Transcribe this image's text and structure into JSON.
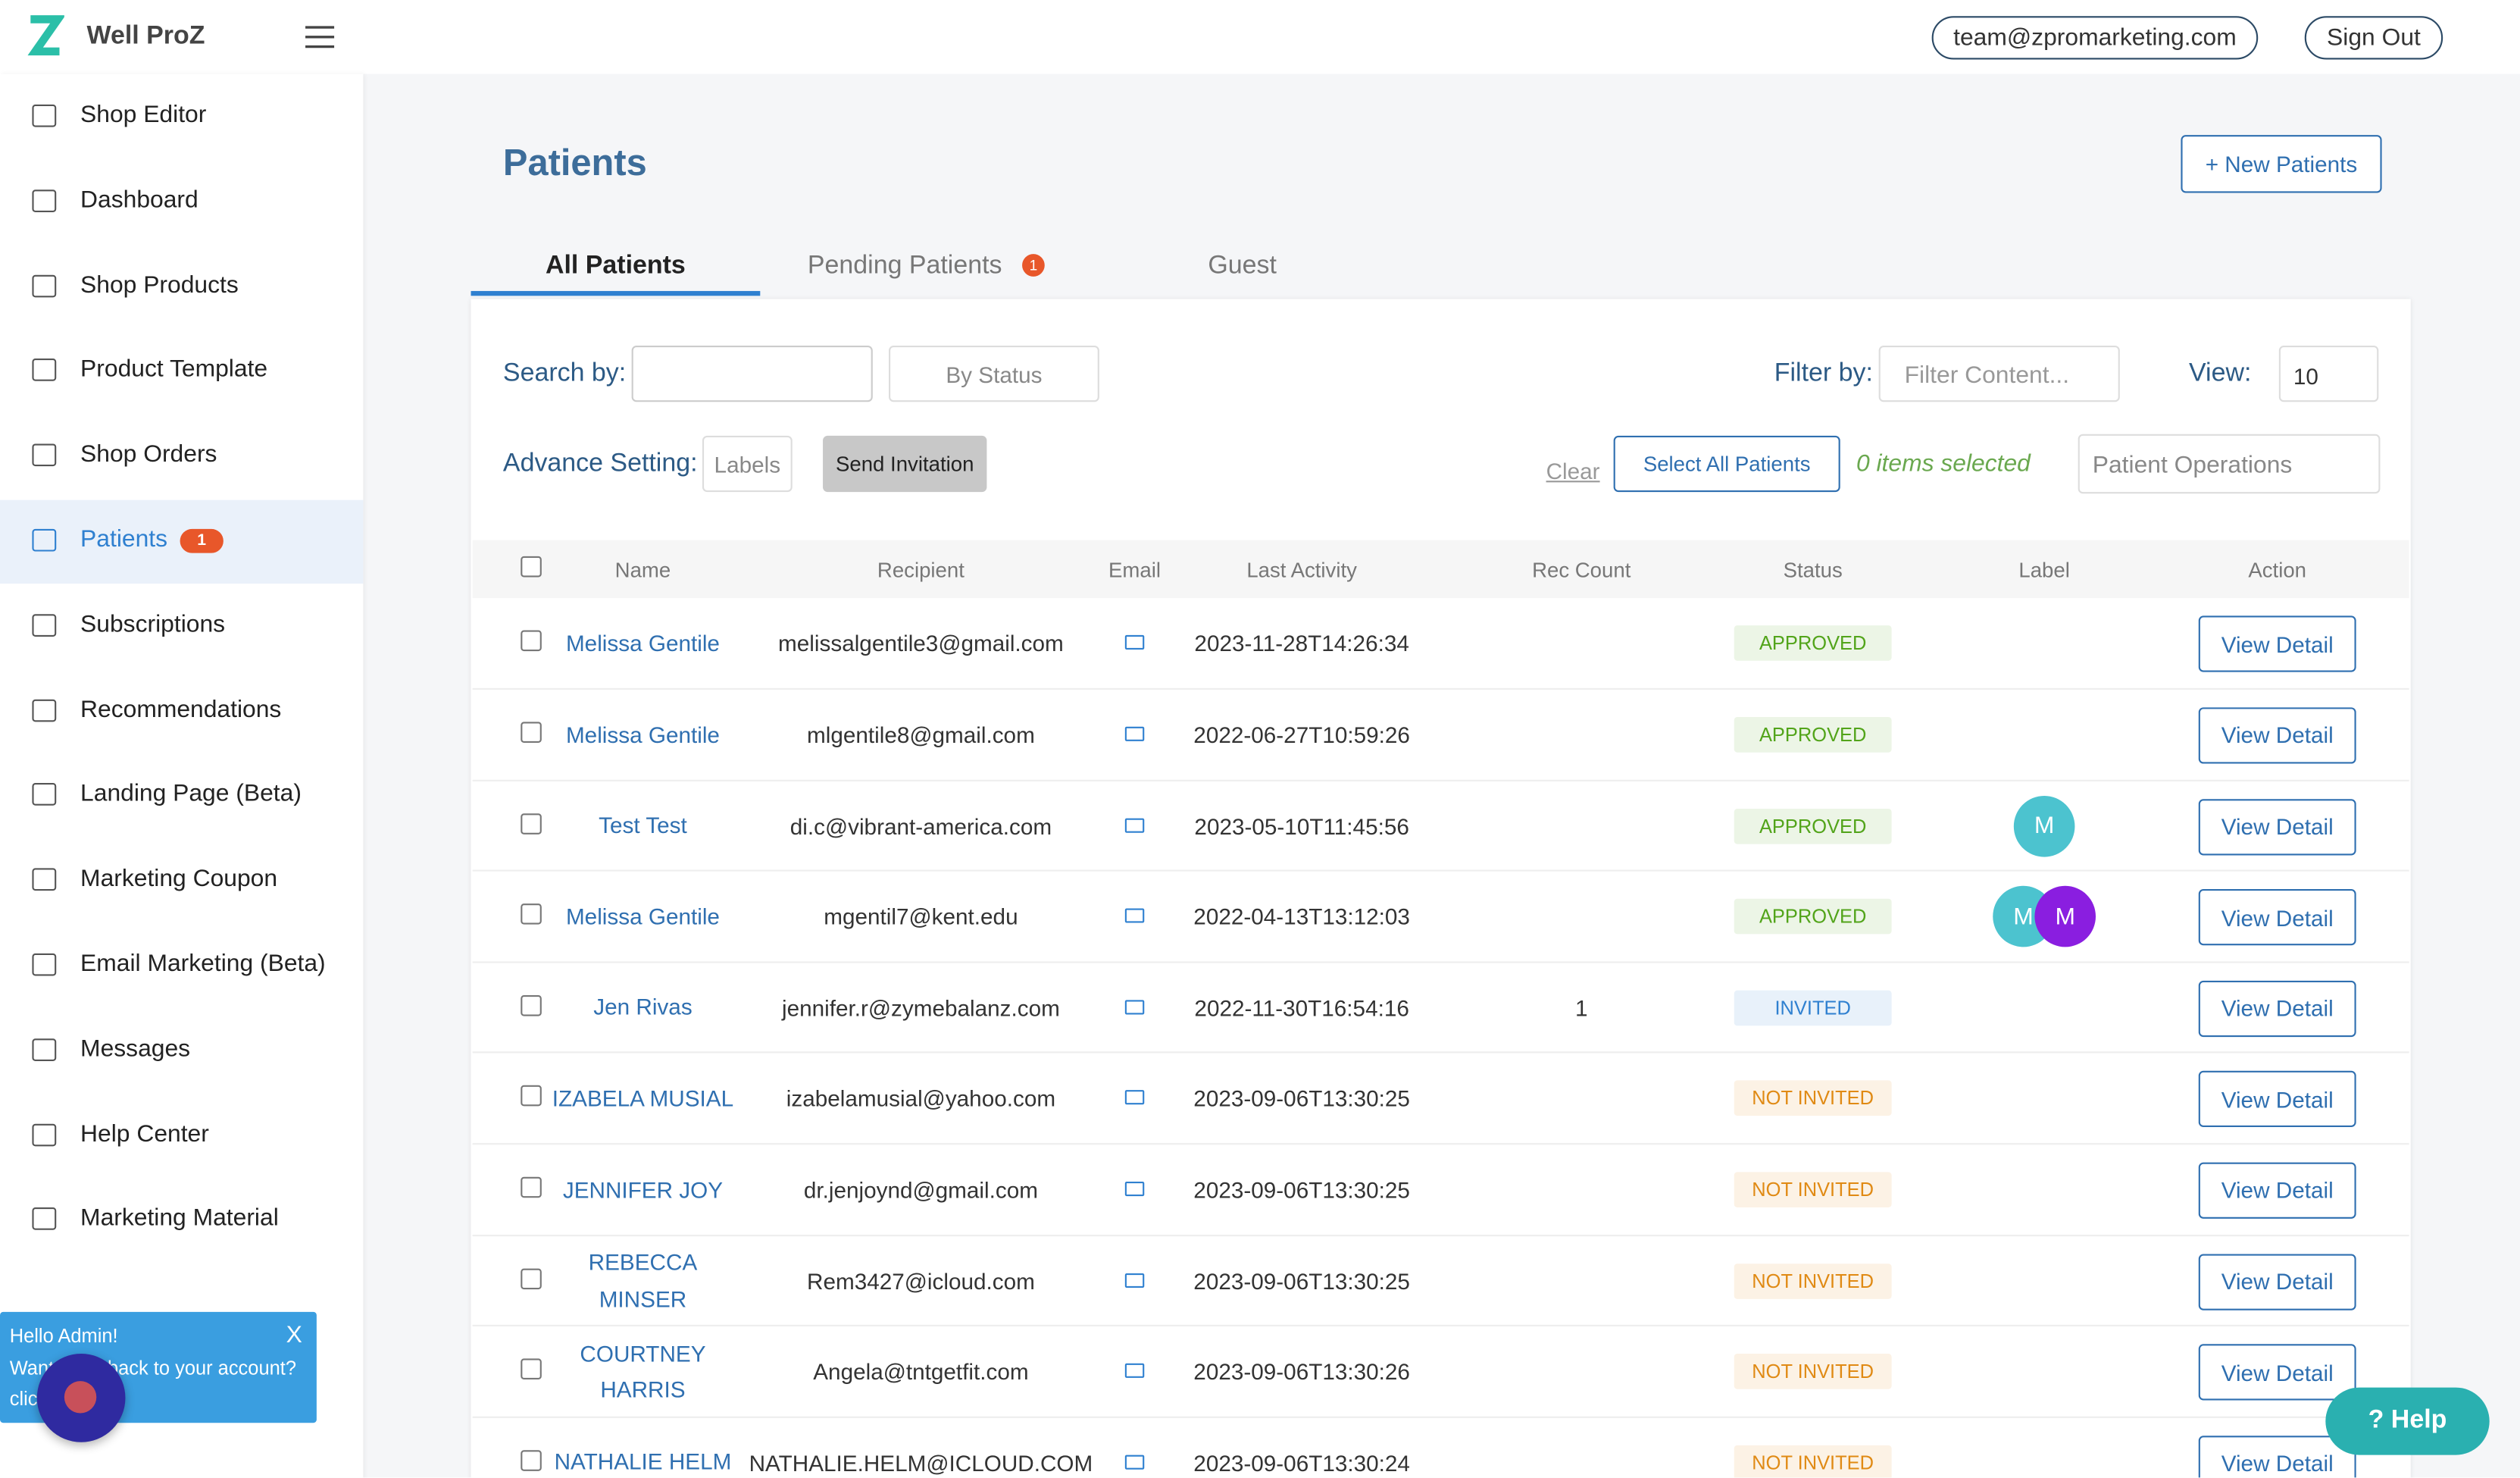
{
  "header": {
    "brand": "Well ProZ",
    "account": "team@zpromarketing.com",
    "sign_out": "Sign Out"
  },
  "sidebar": [
    {
      "label": "Shop Editor"
    },
    {
      "label": "Dashboard"
    },
    {
      "label": "Shop Products"
    },
    {
      "label": "Product Template"
    },
    {
      "label": "Shop Orders"
    },
    {
      "label": "Patients",
      "badge": "1",
      "active": true
    },
    {
      "label": "Subscriptions"
    },
    {
      "label": "Recommendations"
    },
    {
      "label": "Landing Page (Beta)"
    },
    {
      "label": "Marketing Coupon"
    },
    {
      "label": "Email Marketing (Beta)"
    },
    {
      "label": "Messages"
    },
    {
      "label": "Help Center"
    },
    {
      "label": "Marketing Material"
    }
  ],
  "page": {
    "title": "Patients",
    "new_button": "+ New Patients"
  },
  "tabs": [
    {
      "label": "All Patients",
      "active": true
    },
    {
      "label": "Pending Patients",
      "badge": "1"
    },
    {
      "label": "Guest"
    }
  ],
  "filters": {
    "search_label": "Search by:",
    "by_status": "By Status",
    "filter_label": "Filter by:",
    "filter_placeholder": "Filter Content...",
    "view_label": "View:",
    "view_value": "10",
    "advance_label": "Advance Setting:",
    "labels_button": "Labels",
    "send_invitation": "Send Invitation",
    "clear": "Clear",
    "select_all": "Select All Patients",
    "selected": "0 items selected",
    "operations": "Patient Operations"
  },
  "table": {
    "columns": [
      "Name",
      "Recipient",
      "Email",
      "Last Activity",
      "Rec Count",
      "Status",
      "Label",
      "Action"
    ],
    "rows": [
      {
        "name": "Melissa Gentile",
        "recipient": "melissalgentile3@gmail.com",
        "last_activity": "2023-11-28T14:26:34",
        "rec_count": "",
        "status": "APPROVED",
        "status_color": "#52a41a",
        "labels": [],
        "action": "View Detail"
      },
      {
        "name": "Melissa Gentile",
        "recipient": "mlgentile8@gmail.com",
        "last_activity": "2022-06-27T10:59:26",
        "rec_count": "",
        "status": "APPROVED",
        "status_color": "#52a41a",
        "labels": [],
        "action": "View Detail"
      },
      {
        "name": "Test Test",
        "recipient": "di.c@vibrant-america.com",
        "last_activity": "2023-05-10T11:45:56",
        "rec_count": "",
        "status": "APPROVED",
        "status_color": "#52a41a",
        "labels": [
          {
            "text": "M",
            "color": "#4cc3cf"
          }
        ],
        "action": "View Detail"
      },
      {
        "name": "Melissa Gentile",
        "recipient": "mgentil7@kent.edu",
        "last_activity": "2022-04-13T13:12:03",
        "rec_count": "",
        "status": "APPROVED",
        "status_color": "#52a41a",
        "labels": [
          {
            "text": "M",
            "color": "#4cc3cf"
          },
          {
            "text": "M",
            "color": "#8a1ee0"
          }
        ],
        "action": "View Detail"
      },
      {
        "name": "Jen Rivas",
        "recipient": "jennifer.r@zymebalanz.com",
        "last_activity": "2022-11-30T16:54:16",
        "rec_count": "1",
        "status": "INVITED",
        "status_color": "#2f80d0",
        "labels": [],
        "action": "View Detail"
      },
      {
        "name": "IZABELA MUSIAL",
        "recipient": "izabelamusial@yahoo.com",
        "last_activity": "2023-09-06T13:30:25",
        "rec_count": "",
        "status": "NOT INVITED",
        "status_color": "#e08a14",
        "labels": [],
        "action": "View Detail"
      },
      {
        "name": "JENNIFER JOY",
        "recipient": "dr.jenjoynd@gmail.com",
        "last_activity": "2023-09-06T13:30:25",
        "rec_count": "",
        "status": "NOT INVITED",
        "status_color": "#e08a14",
        "labels": [],
        "action": "View Detail"
      },
      {
        "name": "REBECCA MINSER",
        "recipient": "Rem3427@icloud.com",
        "last_activity": "2023-09-06T13:30:25",
        "rec_count": "",
        "status": "NOT INVITED",
        "status_color": "#e08a14",
        "labels": [],
        "action": "View Detail"
      },
      {
        "name": "COURTNEY HARRIS",
        "recipient": "Angela@tntgetfit.com",
        "last_activity": "2023-09-06T13:30:26",
        "rec_count": "",
        "status": "NOT INVITED",
        "status_color": "#e08a14",
        "labels": [],
        "action": "View Detail"
      },
      {
        "name": "NATHALIE HELM",
        "recipient": "NATHALIE.HELM@ICLOUD.COM",
        "last_activity": "2023-09-06T13:30:24",
        "rec_count": "",
        "status": "NOT INVITED",
        "status_color": "#e08a14",
        "labels": [],
        "action": "View Detail"
      }
    ]
  },
  "popup": {
    "title": "Hello Admin!",
    "close": "X",
    "text": "Want to go back to your account? click here"
  },
  "help": "? Help"
}
